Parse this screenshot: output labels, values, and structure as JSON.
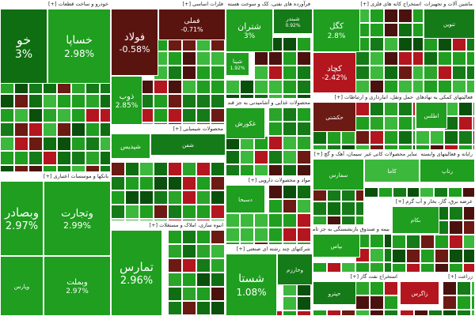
{
  "chart_data": {
    "type": "treemap",
    "color_scale": {
      "strong_positive": "#1f9e1f",
      "mid_positive": "#3cb83c",
      "weak_positive": "#0f6e12",
      "dark_positive": "#0a4f0c",
      "weak_negative": "#6b1a14",
      "strong_negative": "#b3161e"
    },
    "sectors": [
      {
        "name": "خودرو و ساخت قطعات [+]",
        "tiles": [
          {
            "symbol": "خو",
            "change": "3%",
            "change_pct": 3,
            "col": "#0f6e12"
          },
          {
            "symbol": "خساپا",
            "change": "2.98%",
            "change_pct": 2.98,
            "col": "#1f9e1f"
          }
        ]
      },
      {
        "name": "فلزات اساسی [+]",
        "tiles": [
          {
            "symbol": "فولاد",
            "change": "-0.58%",
            "change_pct": -0.58,
            "col": "#5a1410"
          },
          {
            "symbol": "فملی",
            "change": "-0.71%",
            "change_pct": -0.71,
            "col": "#5a1410"
          },
          {
            "symbol": "ذوب",
            "change": "2.85%",
            "change_pct": 2.85,
            "col": "#1f9e1f"
          }
        ]
      },
      {
        "name": "فرآورده های نفتی، کک و سوخت هسته ای [+]",
        "tiles": [
          {
            "symbol": "شتران",
            "change": "3%",
            "change_pct": 3,
            "col": "#1f9e1f"
          },
          {
            "symbol": "شبندر",
            "change": "0.92%",
            "change_pct": 0.92,
            "col": "#157a18"
          },
          {
            "symbol": "شپنا",
            "change": "1.92%",
            "change_pct": 1.92,
            "col": "#1f9e1f"
          }
        ]
      },
      {
        "name": "استخراج کانه های فلزی [+]",
        "tiles": [
          {
            "symbol": "کگل",
            "change": "2.8%",
            "change_pct": 2.8,
            "col": "#1f9e1f"
          },
          {
            "symbol": "کچاد",
            "change": "-2.42%",
            "change_pct": -2.42,
            "col": "#b3161e"
          }
        ]
      },
      {
        "name": "ماشین آلات و تجهیزات [+]",
        "tiles": [
          {
            "symbol": "تنوین",
            "change": "",
            "col": "#157a18"
          }
        ]
      },
      {
        "name": "بانکها و موسسات اعتباری [+]",
        "tiles": [
          {
            "symbol": "وبصادر",
            "change": "2.97%",
            "change_pct": 2.97,
            "col": "#1f9e1f"
          },
          {
            "symbol": "وتجارت",
            "change": "2.99%",
            "change_pct": 2.99,
            "col": "#1f9e1f"
          },
          {
            "symbol": "وبملت",
            "change": "2.97%",
            "change_pct": 2.97,
            "col": "#1f9e1f"
          },
          {
            "symbol": "وپارس",
            "change": "",
            "col": "#1f9e1f"
          }
        ]
      },
      {
        "name": "محصولات شیمیایی [+]",
        "tiles": [
          {
            "symbol": "شپدیس",
            "change": "",
            "col": "#1f9e1f"
          },
          {
            "symbol": "شفن",
            "change": "",
            "col": "#157a18"
          }
        ]
      },
      {
        "name": "انبوه سازی، املاک و مستغلات [+]",
        "tiles": [
          {
            "symbol": "تمارس",
            "change": "2.96%",
            "change_pct": 2.96,
            "col": "#1f9e1f"
          }
        ]
      },
      {
        "name": "شرکتهای چند رشته ای صنعتی [+]",
        "tiles": [
          {
            "symbol": "شستا",
            "change": "1.08%",
            "change_pct": 1.08,
            "col": "#1f9e1f"
          },
          {
            "symbol": "وخارزم",
            "change": "",
            "col": "#157a18"
          }
        ]
      },
      {
        "name": "محصولات غذایی و آشامیدنی به جز قند و شکر [+]",
        "tiles": [
          {
            "symbol": "غکورش",
            "change": "",
            "col": "#1f9e1f"
          }
        ]
      },
      {
        "name": "مواد و محصولات دارویی [+]",
        "tiles": [
          {
            "symbol": "دسبحا",
            "change": "",
            "col": "#1f9e1f"
          }
        ]
      },
      {
        "name": "حمل ونقل، انبارداری و ارتباطات [+]",
        "tiles": [
          {
            "symbol": "حکشتی",
            "change": "",
            "col": "#6b1a14"
          }
        ]
      },
      {
        "name": "فعالیتهای کمکی به نهادهای مالی واسط [+]",
        "tiles": [
          {
            "symbol": "اطلس",
            "change": "",
            "col": "#1f9e1f"
          }
        ]
      },
      {
        "name": "سیمان، آهک و گچ [+]",
        "tiles": [
          {
            "symbol": "سفارس",
            "change": "",
            "col": "#1f9e1f"
          }
        ]
      },
      {
        "name": "سایر محصولات کانی غیرفلزی [+]",
        "tiles": [
          {
            "symbol": "کاما",
            "change": "",
            "col": "#3cb83c"
          }
        ]
      },
      {
        "name": "رایانه و فعالیتهای وابسته به آن [+]",
        "tiles": [
          {
            "symbol": "رتاپ",
            "change": "",
            "col": "#1f9e1f"
          }
        ]
      },
      {
        "name": "بیمه و صندوق بازنشستگی به جز تامین اجتماعی [+]",
        "tiles": [
          {
            "symbol": "بپاس",
            "change": "",
            "col": "#1f9e1f"
          }
        ]
      },
      {
        "name": "عرضه برق، گاز، بخار و آب گرم [+]",
        "tiles": [
          {
            "symbol": "بکام",
            "change": "",
            "col": "#1f9e1f"
          }
        ]
      },
      {
        "name": "استخراج نفت گاز [+]",
        "tiles": [
          {
            "symbol": "حپترو",
            "change": "",
            "col": "#157a18"
          }
        ]
      },
      {
        "name": "زراعت [+]",
        "tiles": [
          {
            "symbol": "زاگرس",
            "change": "",
            "col": "#b3161e"
          }
        ]
      }
    ]
  }
}
